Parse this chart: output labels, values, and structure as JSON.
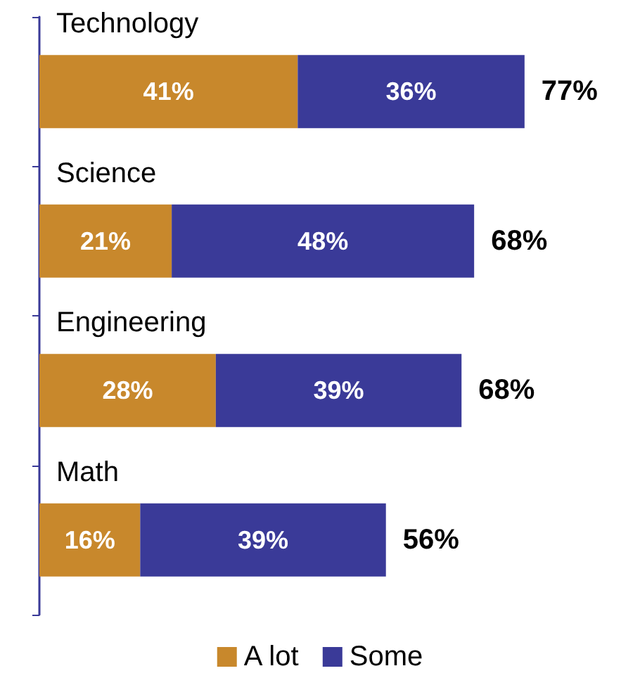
{
  "chart_data": {
    "type": "bar",
    "orientation": "horizontal",
    "stacked": true,
    "categories": [
      "Technology",
      "Science",
      "Engineering",
      "Math"
    ],
    "series": [
      {
        "name": "A lot",
        "color": "#c8882c",
        "values": [
          41,
          21,
          28,
          16
        ],
        "value_labels": [
          "41%",
          "21%",
          "28%",
          "16%"
        ]
      },
      {
        "name": "Some",
        "color": "#3a3a98",
        "values": [
          36,
          48,
          39,
          39
        ],
        "value_labels": [
          "36%",
          "48%",
          "39%",
          "39%"
        ]
      }
    ],
    "totals": [
      "77%",
      "68%",
      "68%",
      "56%"
    ],
    "legend": "bottom",
    "grid": false
  }
}
